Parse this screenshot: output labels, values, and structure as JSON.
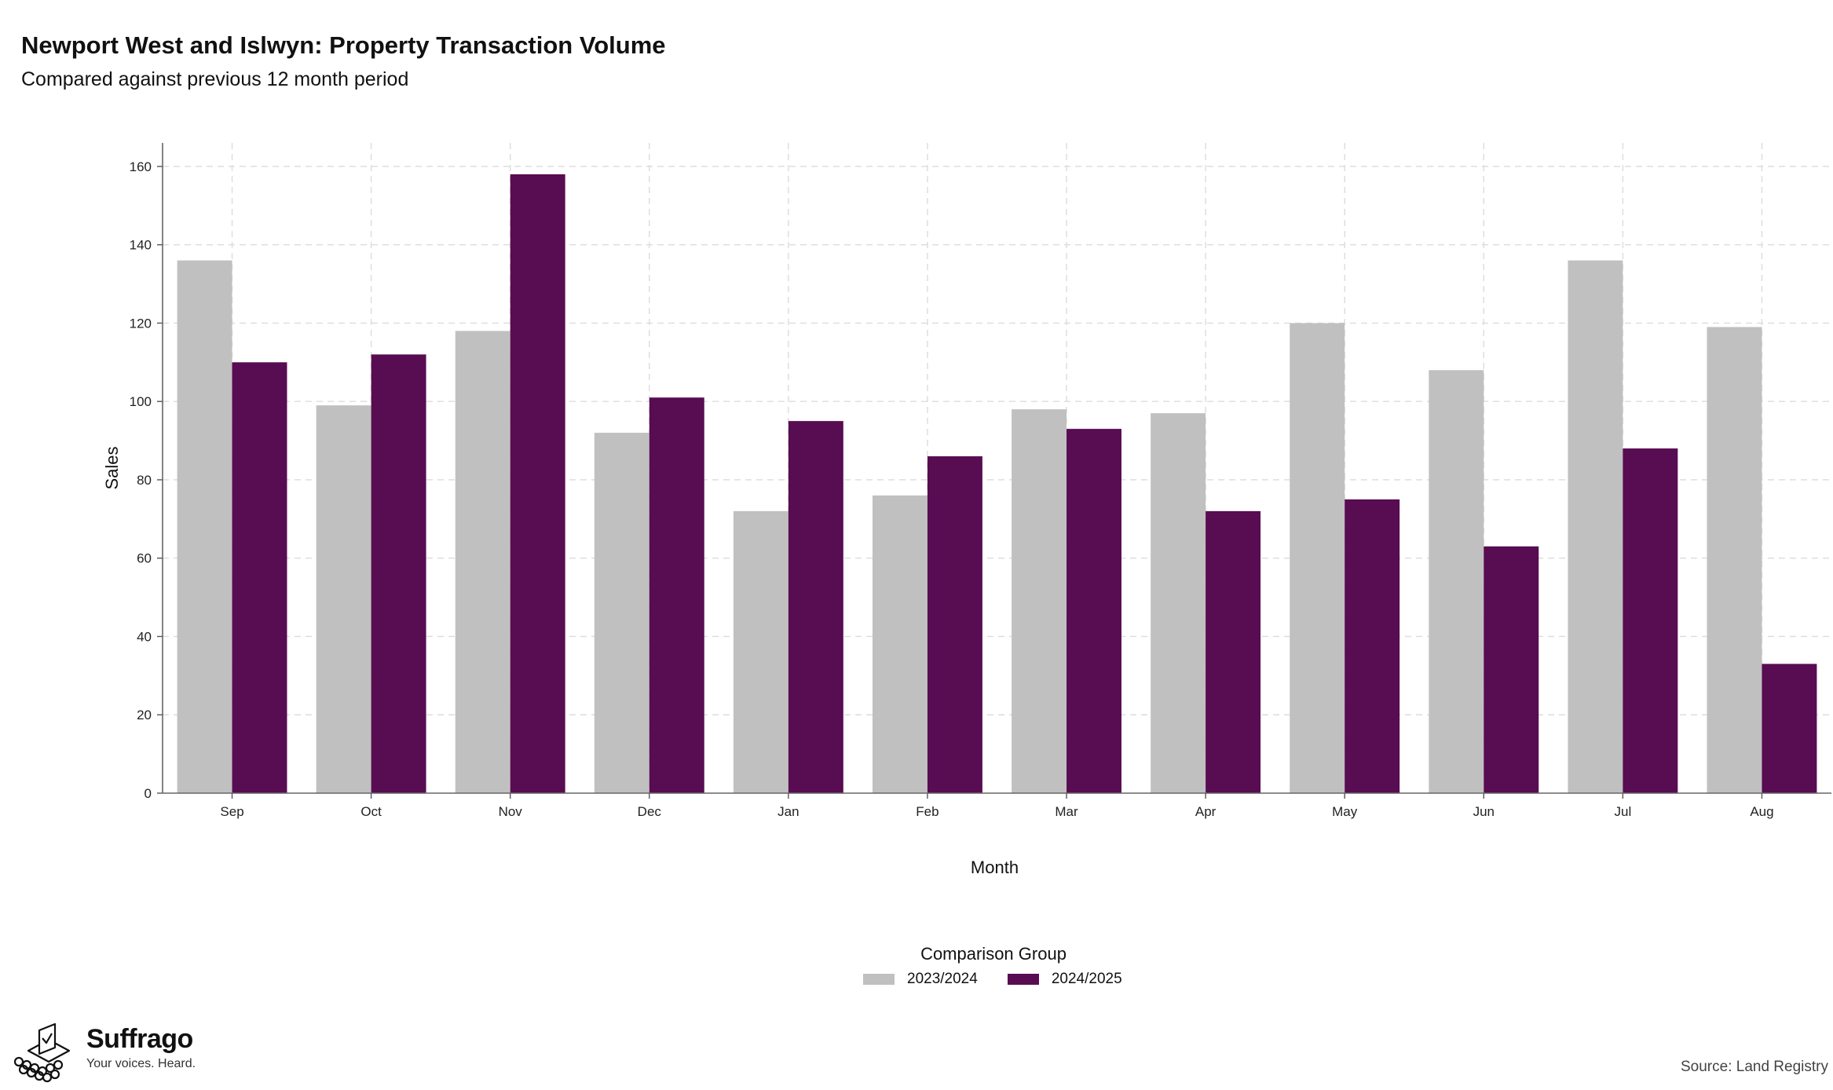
{
  "header": {
    "title": "Newport West and Islwyn: Property Transaction Volume",
    "subtitle": "Compared against previous 12 month period"
  },
  "legend": {
    "title": "Comparison Group",
    "items": [
      {
        "label": "2023/2024",
        "color": "#c0c0c0"
      },
      {
        "label": "2024/2025",
        "color": "#580c52"
      }
    ]
  },
  "brand": {
    "name": "Suffrago",
    "tagline": "Your voices. Heard.",
    "icon": "ballot-box-icon"
  },
  "footer": {
    "source": "Source: Land Registry"
  },
  "chart_data": {
    "type": "bar",
    "title": "Newport West and Islwyn: Property Transaction Volume",
    "subtitle": "Compared against previous 12 month period",
    "xlabel": "Month",
    "ylabel": "Sales",
    "categories": [
      "Sep",
      "Oct",
      "Nov",
      "Dec",
      "Jan",
      "Feb",
      "Mar",
      "Apr",
      "May",
      "Jun",
      "Jul",
      "Aug"
    ],
    "series": [
      {
        "name": "2023/2024",
        "color": "#c0c0c0",
        "values": [
          136,
          99,
          118,
          92,
          72,
          76,
          98,
          97,
          120,
          108,
          136,
          119
        ]
      },
      {
        "name": "2024/2025",
        "color": "#580c52",
        "values": [
          110,
          112,
          158,
          101,
          95,
          86,
          93,
          72,
          75,
          63,
          88,
          33
        ]
      }
    ],
    "ylim": [
      0,
      166
    ],
    "yticks": [
      0,
      20,
      40,
      60,
      80,
      100,
      120,
      140,
      160
    ],
    "grid": true,
    "legend_position": "bottom"
  }
}
